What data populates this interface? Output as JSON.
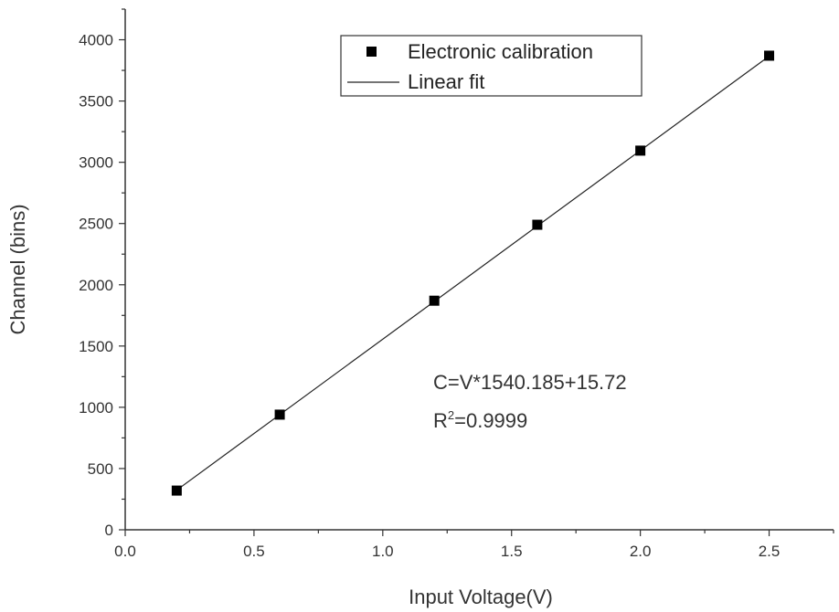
{
  "chart_data": {
    "type": "scatter",
    "xlabel": "Input Voltage(V)",
    "ylabel": "Channel (bins)",
    "xlim": [
      0.0,
      2.75
    ],
    "ylim": [
      0,
      4250
    ],
    "x_ticks": [
      "0.0",
      "0.5",
      "1.0",
      "1.5",
      "2.0",
      "2.5"
    ],
    "x_tick_values": [
      0.0,
      0.5,
      1.0,
      1.5,
      2.0,
      2.5
    ],
    "y_ticks": [
      "0",
      "500",
      "1000",
      "1500",
      "2000",
      "2500",
      "3000",
      "3500",
      "4000"
    ],
    "y_tick_values": [
      0,
      500,
      1000,
      1500,
      2000,
      2500,
      3000,
      3500,
      4000
    ],
    "grid": false,
    "legend_position": "top-right",
    "series": [
      {
        "name": "Electronic calibration",
        "kind": "scatter",
        "marker": "square",
        "color": "#000000",
        "x": [
          0.2,
          0.6,
          1.2,
          1.6,
          2.0,
          2.5
        ],
        "y": [
          320,
          940,
          1870,
          2490,
          3095,
          3870
        ]
      },
      {
        "name": "Linear fit",
        "kind": "line",
        "color": "#222222",
        "slope": 1540.185,
        "intercept": 15.72,
        "x_range": [
          0.2,
          2.5
        ]
      }
    ],
    "annotations": {
      "equation": "C=V*1540.185+15.72",
      "r_squared_prefix": "R",
      "r_squared_exponent": "2",
      "r_squared_value": "=0.9999"
    }
  }
}
